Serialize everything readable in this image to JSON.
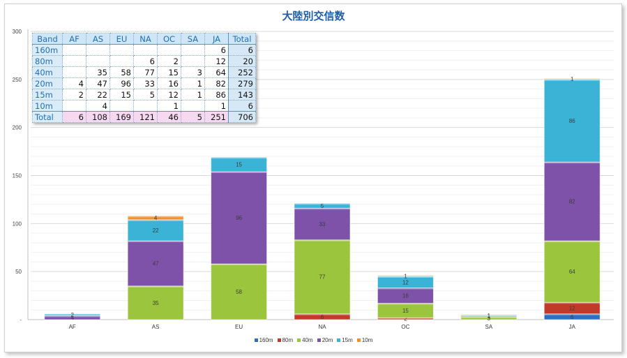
{
  "chart_data": {
    "type": "bar",
    "stacked": true,
    "title": "大陸別交信数",
    "categories": [
      "AF",
      "AS",
      "EU",
      "NA",
      "OC",
      "SA",
      "JA"
    ],
    "series": [
      {
        "name": "160m",
        "color": "#2f6fbf",
        "values": [
          0,
          0,
          0,
          0,
          0,
          0,
          6
        ]
      },
      {
        "name": "80m",
        "color": "#c0392b",
        "values": [
          0,
          0,
          0,
          6,
          2,
          0,
          12
        ]
      },
      {
        "name": "40m",
        "color": "#9bc53d",
        "values": [
          0,
          35,
          58,
          77,
          15,
          3,
          64
        ]
      },
      {
        "name": "20m",
        "color": "#7e52a8",
        "values": [
          4,
          47,
          96,
          33,
          16,
          1,
          82
        ]
      },
      {
        "name": "15m",
        "color": "#3bb3d6",
        "values": [
          2,
          22,
          15,
          5,
          12,
          1,
          86
        ]
      },
      {
        "name": "10m",
        "color": "#f0912f",
        "values": [
          0,
          4,
          0,
          0,
          1,
          0,
          1
        ]
      }
    ],
    "ylim": [
      0,
      300
    ],
    "yticks": [
      0,
      50,
      100,
      150,
      200,
      250,
      300
    ],
    "ytick_labels": [
      "-",
      "50",
      "100",
      "150",
      "200",
      "250",
      "300"
    ],
    "legend_position": "bottom"
  },
  "table": {
    "header": [
      "Band",
      "AF",
      "AS",
      "EU",
      "NA",
      "OC",
      "SA",
      "JA",
      "Total"
    ],
    "rows": [
      [
        "160m",
        "",
        "",
        "",
        "",
        "",
        "",
        "6",
        "6"
      ],
      [
        "80m",
        "",
        "",
        "",
        "6",
        "2",
        "",
        "12",
        "20"
      ],
      [
        "40m",
        "",
        "35",
        "58",
        "77",
        "15",
        "3",
        "64",
        "252"
      ],
      [
        "20m",
        "4",
        "47",
        "96",
        "33",
        "16",
        "1",
        "82",
        "279"
      ],
      [
        "15m",
        "2",
        "22",
        "15",
        "5",
        "12",
        "1",
        "86",
        "143"
      ],
      [
        "10m",
        "",
        "4",
        "",
        "",
        "1",
        "",
        "1",
        "6"
      ]
    ],
    "total_row": [
      "Total",
      "6",
      "108",
      "169",
      "121",
      "46",
      "5",
      "251",
      "706"
    ]
  }
}
